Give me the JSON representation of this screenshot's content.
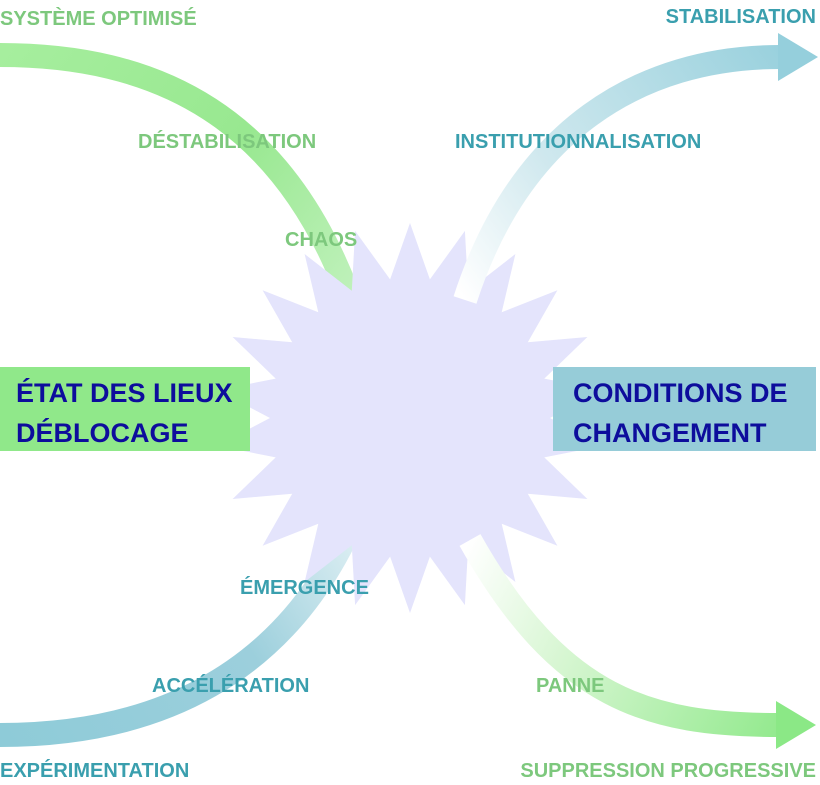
{
  "colors": {
    "green_label": "#7dc87d",
    "teal_label": "#3a9fae",
    "green_box": "#90e88a",
    "teal_box": "#96ccd8",
    "box_text": "#0d0d9c",
    "star_fill": "#e4e4fc"
  },
  "labels": {
    "systeme_optimise": "SYSTÈME OPTIMISÉ",
    "destabilisation": "DÉSTABILISATION",
    "chaos": "CHAOS",
    "stabilisation": "STABILISATION",
    "institutionnalisation": "INSTITUTIONNALISATION",
    "emergence": "ÉMERGENCE",
    "acceleration": "ACCÉLÉRATION",
    "experimentation": "EXPÉRIMENTATION",
    "panne": "PANNE",
    "suppression_progressive": "SUPPRESSION PROGRESSIVE"
  },
  "boxes": {
    "left": {
      "line1": "ÉTAT DES LIEUX",
      "line2": "DÉBLOCAGE"
    },
    "right": {
      "line1": "CONDITIONS DE",
      "line2": "CHANGEMENT"
    }
  }
}
